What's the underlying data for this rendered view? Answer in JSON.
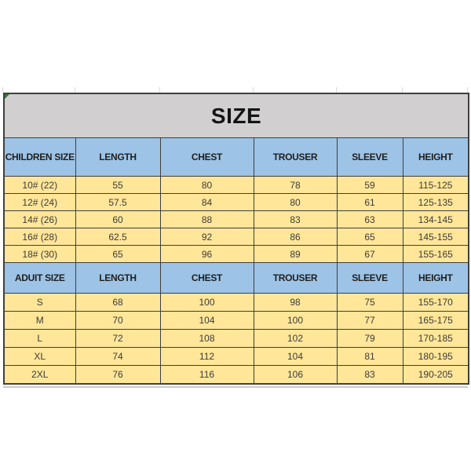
{
  "title": "SIZE",
  "colors": {
    "title_bg": "#d1cfcf",
    "header_bg": "#9dc3e6",
    "row_bg": "#ffe699",
    "border": "#3f3f3f"
  },
  "chart_data": [
    {
      "type": "table",
      "title": "SIZE",
      "headers": [
        "CHILDREN SIZE",
        "LENGTH",
        "CHEST",
        "TROUSER",
        "SLEEVE",
        "HEIGHT"
      ],
      "rows": [
        [
          "10# (22)",
          "55",
          "80",
          "78",
          "59",
          "115-125"
        ],
        [
          "12# (24)",
          "57.5",
          "84",
          "80",
          "61",
          "125-135"
        ],
        [
          "14# (26)",
          "60",
          "88",
          "83",
          "63",
          "134-145"
        ],
        [
          "16# (28)",
          "62.5",
          "92",
          "86",
          "65",
          "145-155"
        ],
        [
          "18# (30)",
          "65",
          "96",
          "89",
          "67",
          "155-165"
        ]
      ]
    },
    {
      "type": "table",
      "headers": [
        "ADUIT SIZE",
        "LENGTH",
        "CHEST",
        "TROUSER",
        "SLEEVE",
        "HEIGHT"
      ],
      "rows": [
        [
          "S",
          "68",
          "100",
          "98",
          "75",
          "155-170"
        ],
        [
          "M",
          "70",
          "104",
          "100",
          "77",
          "165-175"
        ],
        [
          "L",
          "72",
          "108",
          "102",
          "79",
          "170-185"
        ],
        [
          "XL",
          "74",
          "112",
          "104",
          "81",
          "180-195"
        ],
        [
          "2XL",
          "76",
          "116",
          "106",
          "83",
          "190-205"
        ]
      ]
    }
  ]
}
